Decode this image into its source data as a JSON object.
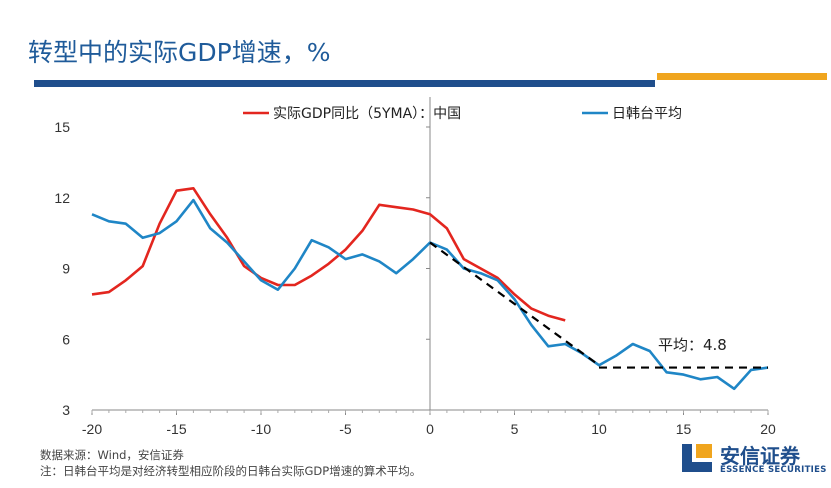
{
  "title": "转型中的实际GDP增速，%",
  "chart_data": {
    "type": "line",
    "xlim": [
      -20,
      20
    ],
    "ylim": [
      3,
      15
    ],
    "xticks": [
      -20,
      -15,
      -10,
      -5,
      0,
      5,
      10,
      15,
      20
    ],
    "yticks": [
      3,
      6,
      9,
      12,
      15
    ],
    "series": [
      {
        "name": "实际GDP同比（5YMA）：中国",
        "color": "#e3261f",
        "x": [
          -20,
          -19,
          -18,
          -17,
          -16,
          -15,
          -14,
          -13,
          -12,
          -11,
          -10,
          -9,
          -8,
          -7,
          -6,
          -5,
          -4,
          -3,
          -2,
          -1,
          0,
          1,
          2,
          3,
          4,
          5,
          6,
          7,
          8
        ],
        "y": [
          7.9,
          8.0,
          8.5,
          9.1,
          10.9,
          12.3,
          12.4,
          11.3,
          10.3,
          9.1,
          8.6,
          8.3,
          8.3,
          8.7,
          9.2,
          9.8,
          10.6,
          11.7,
          11.6,
          11.5,
          11.3,
          10.7,
          9.4,
          9.0,
          8.6,
          7.9,
          7.3,
          7.0,
          6.8
        ]
      },
      {
        "name": "日韩台平均",
        "color": "#1f86c6",
        "x": [
          -20,
          -19,
          -18,
          -17,
          -16,
          -15,
          -14,
          -13,
          -12,
          -11,
          -10,
          -9,
          -8,
          -7,
          -6,
          -5,
          -4,
          -3,
          -2,
          -1,
          0,
          1,
          2,
          3,
          4,
          5,
          6,
          7,
          8,
          9,
          10,
          11,
          12,
          13,
          14,
          15,
          16,
          17,
          18,
          19,
          20
        ],
        "y": [
          11.3,
          11.0,
          10.9,
          10.3,
          10.5,
          11.0,
          11.9,
          10.7,
          10.1,
          9.3,
          8.5,
          8.1,
          9.0,
          10.2,
          9.9,
          9.4,
          9.6,
          9.3,
          8.8,
          9.4,
          10.1,
          9.8,
          9.0,
          8.8,
          8.5,
          7.7,
          6.6,
          5.7,
          5.8,
          5.4,
          4.9,
          5.3,
          5.8,
          5.5,
          4.6,
          4.5,
          4.3,
          4.4,
          3.9,
          4.7,
          4.8
        ]
      }
    ],
    "trend": {
      "x": [
        0,
        10
      ],
      "y": [
        10.1,
        4.9
      ]
    },
    "average": {
      "x": [
        10,
        20
      ],
      "y": 4.8,
      "label": "平均：4.8"
    }
  },
  "notes": {
    "source": "数据来源：Wind，安信证券",
    "note": "注：日韩台平均是对经济转型相应阶段的日韩台实际GDP增速的算术平均。"
  },
  "logo": {
    "name": "安信证券",
    "en": "ESSENCE SECURITIES",
    "colors": {
      "navy": "#1f4e8c",
      "orange": "#f0a51e"
    }
  }
}
